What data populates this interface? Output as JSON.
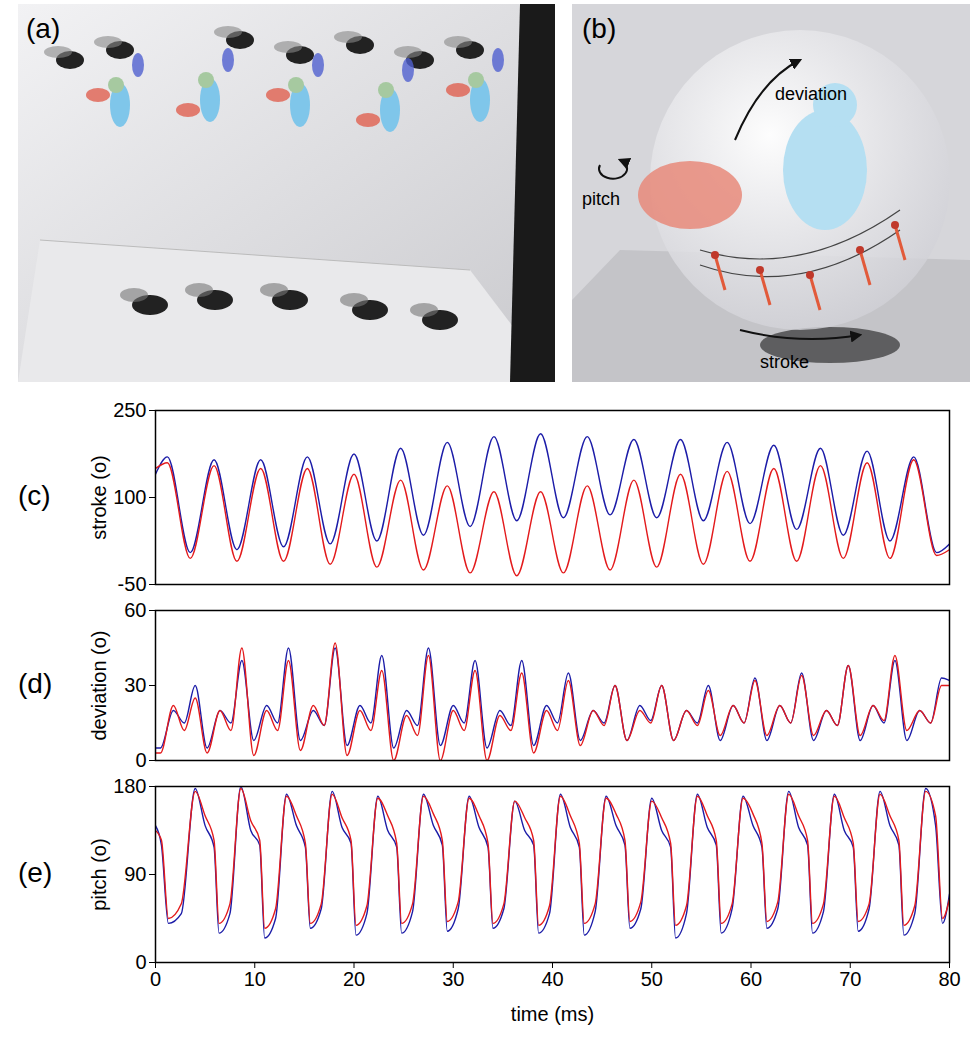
{
  "chart_data": [
    {
      "panel": "(c)",
      "type": "line",
      "ylabel": "stroke (o)",
      "xlim": [
        0,
        80
      ],
      "ylim": [
        -50,
        250
      ],
      "yticks": [
        -50,
        100,
        250
      ],
      "tick_labels": "y",
      "x": [
        0,
        1.2,
        3.5,
        5.9,
        8.2,
        10.6,
        12.9,
        15.3,
        17.6,
        20.0,
        22.3,
        24.7,
        27.0,
        29.4,
        31.7,
        34.1,
        36.4,
        38.8,
        41.1,
        43.5,
        45.8,
        48.2,
        50.5,
        52.9,
        55.2,
        57.6,
        59.9,
        62.3,
        64.6,
        67.0,
        69.3,
        71.7,
        74.0,
        76.4,
        78.7,
        80
      ],
      "series": [
        {
          "color": "#1c1ca8",
          "values": [
            140,
            170,
            5,
            165,
            10,
            165,
            15,
            170,
            20,
            175,
            25,
            185,
            35,
            195,
            50,
            205,
            60,
            210,
            65,
            205,
            70,
            200,
            65,
            200,
            60,
            195,
            55,
            190,
            45,
            185,
            35,
            180,
            25,
            170,
            5,
            20
          ]
        },
        {
          "color": "#e31a1c",
          "values": [
            150,
            160,
            -5,
            155,
            -10,
            150,
            -10,
            150,
            -15,
            140,
            -20,
            130,
            -25,
            120,
            -30,
            110,
            -35,
            110,
            -30,
            120,
            -25,
            130,
            -20,
            140,
            -15,
            145,
            -10,
            150,
            -10,
            155,
            -5,
            160,
            -5,
            165,
            0,
            10
          ]
        }
      ]
    },
    {
      "panel": "(d)",
      "type": "line",
      "ylabel": "deviation (o)",
      "xlim": [
        0,
        80
      ],
      "ylim": [
        0,
        60
      ],
      "yticks": [
        0,
        30,
        60
      ],
      "tick_labels": "y",
      "x": [
        0,
        0.5,
        1.8,
        2.9,
        4.0,
        5.2,
        6.5,
        7.6,
        8.7,
        9.9,
        11.2,
        12.3,
        13.4,
        14.6,
        15.9,
        17.0,
        18.1,
        19.3,
        20.6,
        21.7,
        22.8,
        24.0,
        25.3,
        26.4,
        27.5,
        28.7,
        30.0,
        31.1,
        32.2,
        33.4,
        34.7,
        35.8,
        36.9,
        38.1,
        39.4,
        40.5,
        41.6,
        42.8,
        44.1,
        45.2,
        46.3,
        47.5,
        48.8,
        49.9,
        51.0,
        52.2,
        53.5,
        54.6,
        55.7,
        56.9,
        58.2,
        59.3,
        60.4,
        61.6,
        62.9,
        64.0,
        65.1,
        66.3,
        67.6,
        68.7,
        69.8,
        71.0,
        72.3,
        73.4,
        74.5,
        75.7,
        77.0,
        78.1,
        79.2,
        80
      ],
      "series": [
        {
          "color": "#1c1ca8",
          "values": [
            5,
            5,
            20,
            15,
            30,
            5,
            20,
            15,
            40,
            8,
            22,
            15,
            45,
            8,
            20,
            14,
            45,
            6,
            22,
            15,
            42,
            5,
            20,
            14,
            45,
            6,
            22,
            15,
            40,
            5,
            20,
            14,
            40,
            6,
            22,
            15,
            35,
            8,
            20,
            15,
            30,
            8,
            22,
            16,
            30,
            8,
            20,
            15,
            30,
            8,
            22,
            15,
            33,
            8,
            22,
            15,
            35,
            8,
            20,
            14,
            38,
            8,
            22,
            15,
            40,
            8,
            20,
            15,
            33,
            32
          ]
        },
        {
          "color": "#e31a1c",
          "values": [
            3,
            3,
            22,
            12,
            25,
            3,
            20,
            12,
            45,
            2,
            20,
            12,
            40,
            4,
            22,
            14,
            47,
            2,
            20,
            12,
            36,
            0,
            18,
            10,
            42,
            0,
            20,
            12,
            36,
            0,
            18,
            12,
            35,
            3,
            20,
            12,
            32,
            6,
            20,
            14,
            30,
            8,
            20,
            15,
            30,
            8,
            20,
            14,
            28,
            10,
            22,
            15,
            32,
            10,
            22,
            15,
            34,
            10,
            20,
            14,
            38,
            10,
            22,
            16,
            42,
            12,
            20,
            15,
            30,
            30
          ]
        }
      ]
    },
    {
      "panel": "(e)",
      "type": "line",
      "ylabel": "pitch (o)",
      "xlabel": "time (ms)",
      "xlim": [
        0,
        80
      ],
      "ylim": [
        0,
        180
      ],
      "yticks": [
        0,
        90,
        180
      ],
      "xticks": [
        0,
        10,
        20,
        30,
        40,
        50,
        60,
        70,
        80
      ],
      "x": [
        0,
        0.6,
        1.3,
        2.6,
        4.0,
        5.0,
        5.9,
        6.4,
        7.5,
        8.6,
        9.6,
        10.5,
        11.0,
        12.1,
        13.2,
        14.2,
        15.1,
        15.6,
        16.7,
        17.8,
        18.8,
        19.7,
        20.2,
        21.3,
        22.4,
        23.4,
        24.3,
        24.8,
        25.9,
        27.0,
        28.0,
        28.9,
        29.4,
        30.5,
        31.6,
        32.6,
        33.5,
        34.0,
        35.1,
        36.2,
        37.2,
        38.1,
        38.6,
        39.7,
        40.8,
        41.8,
        42.7,
        43.2,
        44.3,
        45.4,
        46.4,
        47.3,
        47.8,
        48.9,
        50.0,
        51.0,
        51.9,
        52.4,
        53.5,
        54.6,
        55.6,
        56.5,
        57.0,
        58.1,
        59.2,
        60.2,
        61.1,
        61.6,
        62.7,
        63.8,
        64.8,
        65.7,
        66.2,
        67.3,
        68.4,
        69.4,
        70.3,
        70.8,
        71.9,
        73.0,
        74.0,
        74.9,
        75.4,
        76.5,
        77.6,
        78.6,
        79.3,
        80
      ],
      "series": [
        {
          "color": "#1c1ca8",
          "values": [
            140,
            120,
            40,
            50,
            178,
            140,
            118,
            30,
            50,
            180,
            135,
            120,
            25,
            45,
            172,
            140,
            118,
            35,
            55,
            175,
            138,
            122,
            28,
            50,
            170,
            135,
            118,
            30,
            52,
            172,
            140,
            120,
            32,
            55,
            170,
            138,
            118,
            35,
            55,
            165,
            135,
            120,
            30,
            50,
            172,
            138,
            118,
            28,
            52,
            170,
            140,
            120,
            35,
            55,
            168,
            135,
            118,
            25,
            50,
            172,
            138,
            120,
            30,
            55,
            170,
            140,
            118,
            35,
            55,
            175,
            138,
            120,
            30,
            52,
            172,
            135,
            118,
            32,
            55,
            175,
            140,
            120,
            28,
            50,
            178,
            140,
            40,
            70
          ]
        },
        {
          "color": "#e31a1c",
          "values": [
            135,
            125,
            45,
            60,
            175,
            150,
            125,
            40,
            60,
            178,
            145,
            125,
            35,
            55,
            170,
            150,
            122,
            40,
            60,
            172,
            148,
            125,
            38,
            58,
            168,
            150,
            122,
            40,
            60,
            170,
            152,
            125,
            42,
            62,
            168,
            150,
            122,
            40,
            60,
            165,
            148,
            125,
            38,
            58,
            170,
            150,
            122,
            40,
            60,
            168,
            152,
            125,
            42,
            62,
            165,
            148,
            122,
            38,
            58,
            170,
            150,
            125,
            40,
            60,
            168,
            152,
            122,
            42,
            62,
            172,
            150,
            125,
            40,
            60,
            170,
            148,
            122,
            42,
            60,
            172,
            150,
            125,
            38,
            58,
            175,
            150,
            45,
            65
          ]
        }
      ]
    }
  ],
  "illustrations": [
    {
      "panel": "(a)"
    },
    {
      "panel": "(b)",
      "labels": [
        "deviation",
        "pitch",
        "stroke"
      ]
    }
  ]
}
